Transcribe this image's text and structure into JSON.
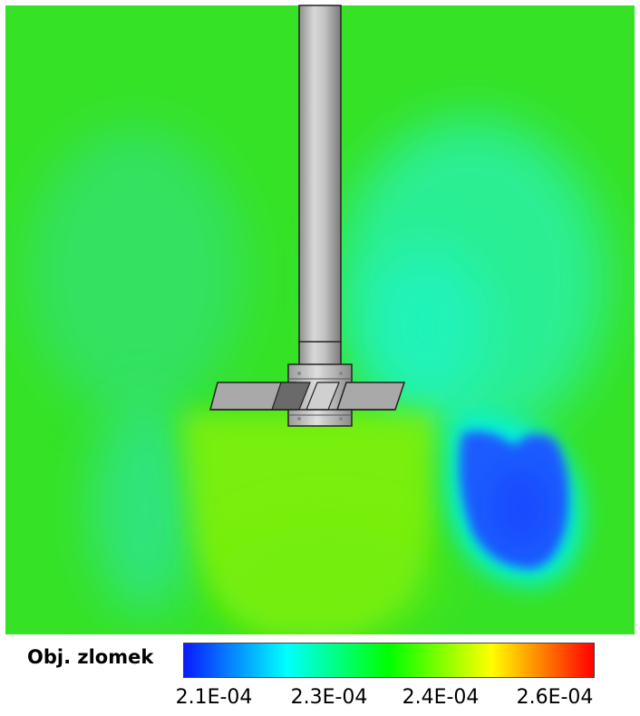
{
  "legend": {
    "title": "Obj. zlomek",
    "ticks": [
      "2.1E-04",
      "2.3E-04",
      "2.4E-04",
      "2.6E-04"
    ],
    "colors": [
      "#0a1bff",
      "#00ffff",
      "#00ff00",
      "#ffff00",
      "#ff0000"
    ]
  },
  "field": {
    "background_color": "#33e31f",
    "regions": [
      {
        "name": "low-fraction-zone-right",
        "color": "#1e5bff"
      },
      {
        "name": "transition-zone-right",
        "color": "#00f5e0"
      },
      {
        "name": "upper-right-cyan-green",
        "color": "#20f0a0"
      },
      {
        "name": "lower-lime-zone",
        "color": "#7af20a"
      },
      {
        "name": "left-cyan-green-zone",
        "color": "#2be68a"
      }
    ]
  }
}
